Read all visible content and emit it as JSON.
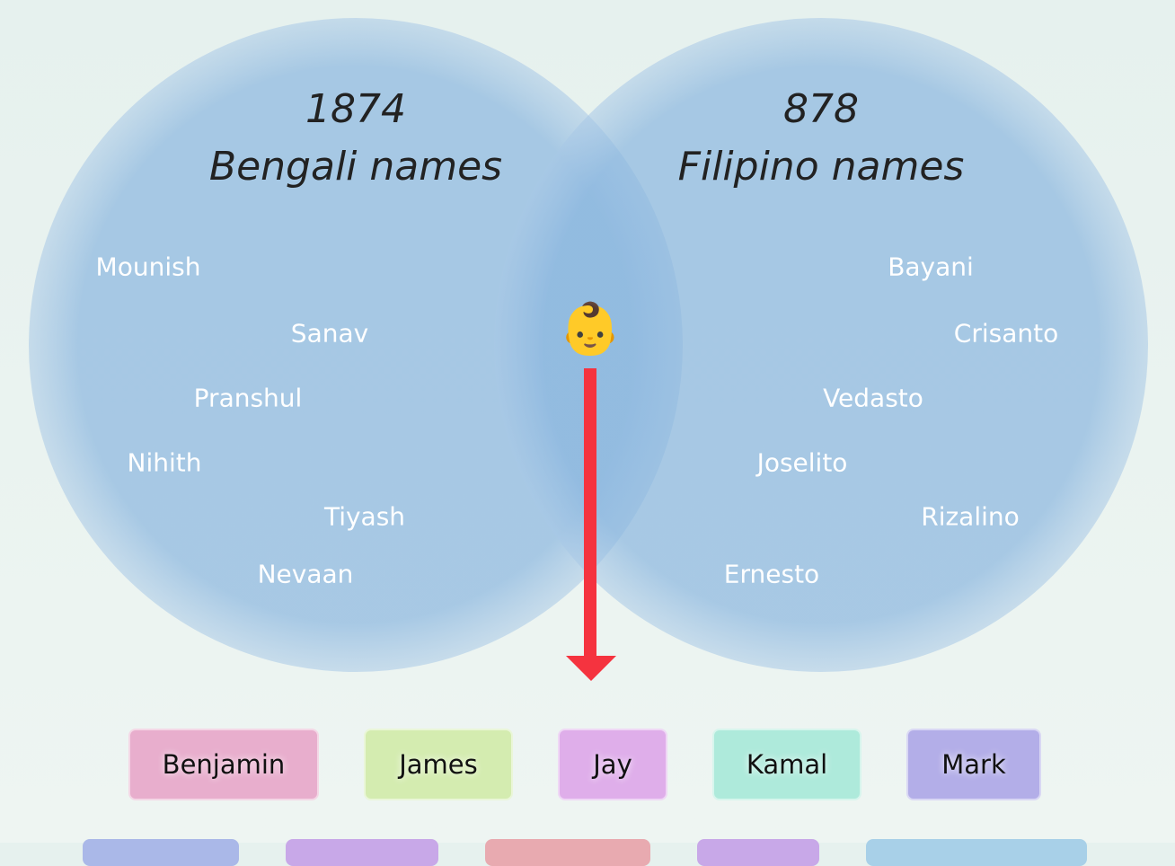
{
  "left": {
    "count": 1874,
    "label": "Bengali names",
    "names": [
      "Mounish",
      "Sanav",
      "Pranshul",
      "Nihith",
      "Tiyash",
      "Nevaan"
    ]
  },
  "right": {
    "count": 878,
    "label": "Filipino names",
    "names": [
      "Bayani",
      "Crisanto",
      "Vedasto",
      "Joselito",
      "Rizalino",
      "Ernesto"
    ]
  },
  "overlap_icon": "👶",
  "shared_names": [
    "Benjamin",
    "James",
    "Jay",
    "Kamal",
    "Mark"
  ]
}
